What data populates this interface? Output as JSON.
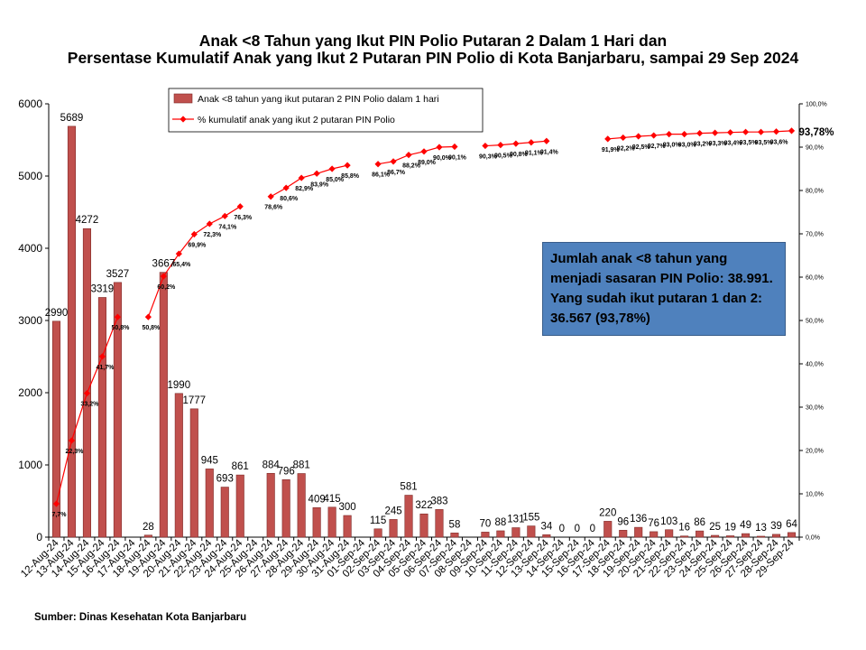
{
  "chart_data": {
    "type": "bar",
    "title_lines": [
      "Anak <8 Tahun yang Ikut PIN Polio Putaran 2 Dalam 1 Hari dan",
      "Persentase Kumulatif Anak yang Ikut 2 Putaran PIN Polio di Kota Banjarbaru, sampai 29 Sep 2024"
    ],
    "categories": [
      "12-Aug-24",
      "13-Aug-24",
      "14-Aug-24",
      "15-Aug-24",
      "16-Aug-24",
      "17-Aug-24",
      "18-Aug-24",
      "19-Aug-24",
      "20-Aug-24",
      "21-Aug-24",
      "22-Aug-24",
      "23-Aug-24",
      "24-Aug-24",
      "25-Aug-24",
      "26-Aug-24",
      "27-Aug-24",
      "28-Aug-24",
      "29-Aug-24",
      "30-Aug-24",
      "31-Aug-24",
      "01-Sep-24",
      "02-Sep-24",
      "03-Sep-24",
      "04-Sep-24",
      "05-Sep-24",
      "06-Sep-24",
      "07-Sep-24",
      "08-Sep-24",
      "09-Sep-24",
      "10-Sep-24",
      "11-Sep-24",
      "12-Sep-24",
      "13-Sep-24",
      "14-Sep-24",
      "15-Sep-24",
      "16-Sep-24",
      "17-Sep-24",
      "18-Sep-24",
      "19-Sep-24",
      "20-Sep-24",
      "21-Sep-24",
      "22-Sep-24",
      "23-Sep-24",
      "24-Sep-24",
      "25-Sep-24",
      "26-Sep-24",
      "27-Sep-24",
      "28-Sep-24",
      "29-Sep-24"
    ],
    "series": [
      {
        "name": "Anak <8 tahun yang ikut putaran 2 PIN Polio dalam 1 hari",
        "type": "bar",
        "axis": "left",
        "color": "#c0504d",
        "values": [
          2990,
          5689,
          4272,
          3319,
          3527,
          null,
          28,
          3667,
          1990,
          1777,
          945,
          693,
          861,
          null,
          884,
          796,
          881,
          409,
          415,
          300,
          null,
          115,
          245,
          581,
          322,
          383,
          58,
          null,
          70,
          88,
          131,
          155,
          34,
          0,
          0,
          0,
          220,
          96,
          136,
          76,
          103,
          16,
          86,
          25,
          19,
          49,
          13,
          39,
          64
        ],
        "labels": [
          "2990",
          "5689",
          "4272",
          "3319",
          "3527",
          "",
          "28",
          "3667",
          "1990",
          "1777",
          "945",
          "693",
          "861",
          "",
          "884",
          "796",
          "881",
          "409",
          "415",
          "300",
          "",
          "115",
          "245",
          "581",
          "322",
          "383",
          "58",
          "",
          "70",
          "88",
          "131",
          "155",
          "34",
          "0",
          "0",
          "0",
          "220",
          "96",
          "136",
          "76",
          "103",
          "16",
          "86",
          "25",
          "19",
          "49",
          "13",
          "39",
          "64"
        ]
      },
      {
        "name": "% kumulatif anak yang ikut 2 putaran PIN Polio",
        "type": "line",
        "axis": "right",
        "color": "#ff0000",
        "values": [
          7.7,
          22.3,
          33.2,
          41.7,
          50.8,
          null,
          50.8,
          60.2,
          65.4,
          69.9,
          72.3,
          74.1,
          76.3,
          null,
          78.6,
          80.6,
          82.9,
          83.9,
          85.0,
          85.8,
          null,
          86.1,
          86.7,
          88.2,
          89.0,
          90.0,
          90.1,
          null,
          90.3,
          90.5,
          90.8,
          91.1,
          91.4,
          null,
          null,
          null,
          91.9,
          92.2,
          92.5,
          92.7,
          93.0,
          93.0,
          93.2,
          93.3,
          93.4,
          93.5,
          93.5,
          93.6,
          93.78
        ],
        "labels": [
          "7,7%",
          "22,3%",
          "33,2%",
          "41,7%",
          "50,8%",
          "",
          "50,8%",
          "60,2%",
          "65,4%",
          "69,9%",
          "72,3%",
          "74,1%",
          "76,3%",
          "",
          "78,6%",
          "80,6%",
          "82,9%",
          "83,9%",
          "85,0%",
          "85,8%",
          "",
          "86,1%",
          "86,7%",
          "88,2%",
          "89,0%",
          "90,0%",
          "90,1%",
          "",
          "90,3%",
          "90,5%",
          "90,8%",
          "91,1%",
          "91,4%",
          "",
          "",
          "",
          "91,9%",
          "92,2%",
          "92,5%",
          "92,7%",
          "93,0%",
          "93,0%",
          "93,2%",
          "93,3%",
          "93,4%",
          "93,5%",
          "93,5%",
          "93,6%",
          "93,78%"
        ]
      }
    ],
    "y_left": {
      "min": 0,
      "max": 6000,
      "ticks": [
        "0",
        "1000",
        "2000",
        "3000",
        "4000",
        "5000",
        "6000"
      ]
    },
    "y_right": {
      "min": 0,
      "max": 100,
      "ticks": [
        "0,0%",
        "10,0%",
        "20,0%",
        "30,0%",
        "40,0%",
        "50,0%",
        "60,0%",
        "70,0%",
        "80,0%",
        "90,0%",
        "100,0%"
      ]
    },
    "legend_position": "top-center",
    "grid": false
  },
  "annotation": {
    "box_text": "Jumlah anak <8 tahun yang menjadi sasaran PIN Polio: 38.991. Yang sudah ikut putaran 1 dan 2: 36.567 (93,78%)",
    "box_color": "#4f81bd"
  },
  "source": "Sumber: Dinas Kesehatan Kota Banjarbaru"
}
